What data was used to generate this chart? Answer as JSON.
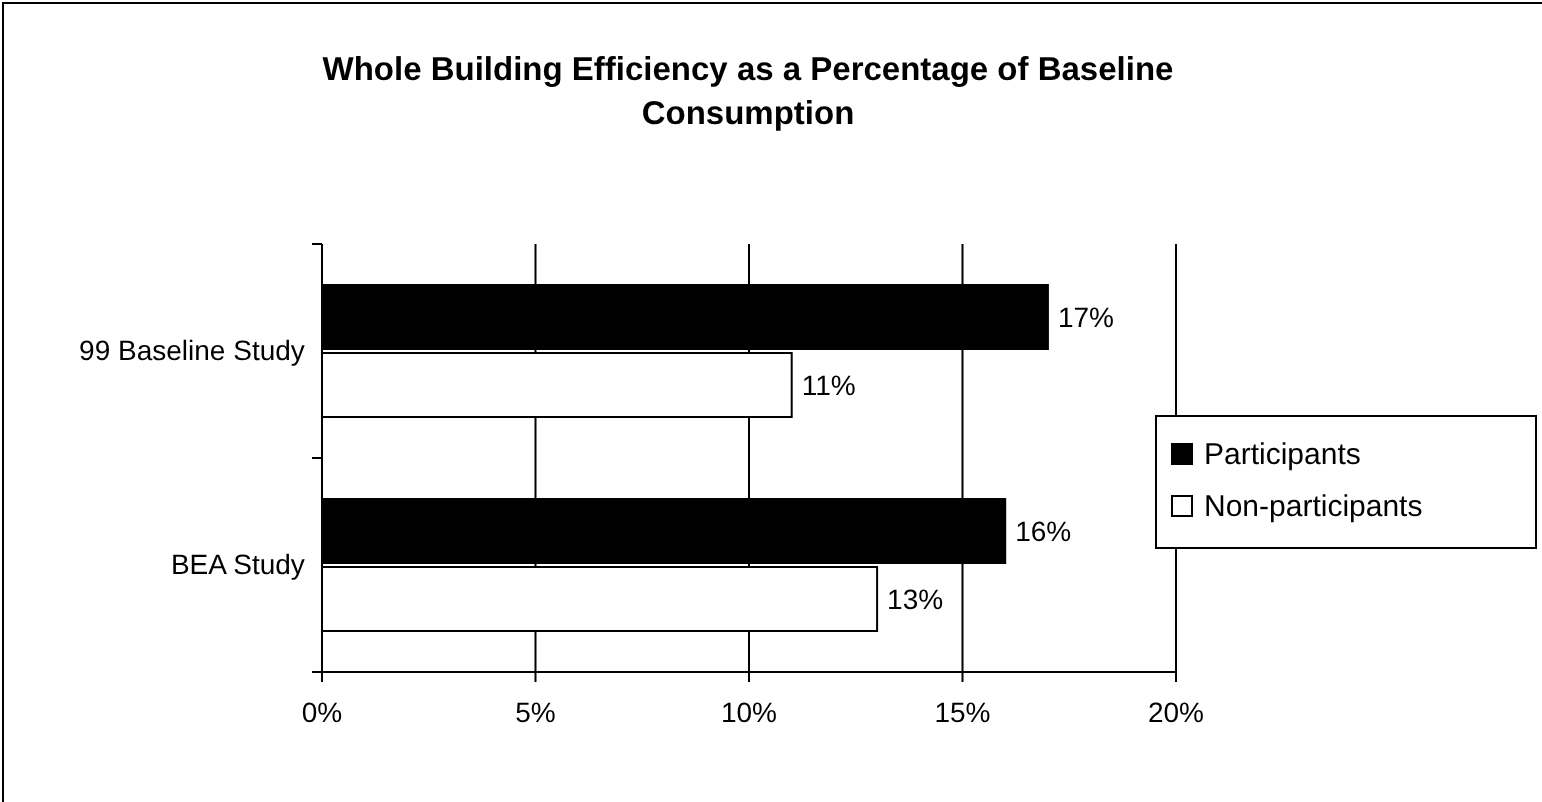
{
  "chart_data": {
    "type": "bar",
    "orientation": "horizontal",
    "title": "Whole Building Efficiency as a Percentage of Baseline Consumption",
    "categories": [
      "99 Baseline Study",
      "BEA Study"
    ],
    "series": [
      {
        "name": "Participants",
        "color": "#000000",
        "values": [
          17,
          16
        ],
        "value_labels": [
          "17%",
          "16%"
        ]
      },
      {
        "name": "Non-participants",
        "color": "#ffffff",
        "values": [
          11,
          13
        ],
        "value_labels": [
          "11%",
          "13%"
        ]
      }
    ],
    "xlim": [
      0,
      20
    ],
    "xticks": [
      {
        "value": 0,
        "label": "0%"
      },
      {
        "value": 5,
        "label": "5%"
      },
      {
        "value": 10,
        "label": "10%"
      },
      {
        "value": 15,
        "label": "15%"
      },
      {
        "value": 20,
        "label": "20%"
      }
    ],
    "grid": "x",
    "legend": "right"
  }
}
